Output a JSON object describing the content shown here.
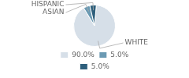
{
  "chart_data": {
    "type": "pie",
    "categories": [
      "90.0%",
      "5.0%",
      "5.0%"
    ],
    "values": [
      90.0,
      5.0,
      5.0
    ],
    "colors": [
      "#d6dfe8",
      "#6b9ab3",
      "#2d5f7c"
    ],
    "annotations": [
      "WHITE",
      "ASIAN",
      "HISPANIC"
    ],
    "legend": "bottom"
  }
}
